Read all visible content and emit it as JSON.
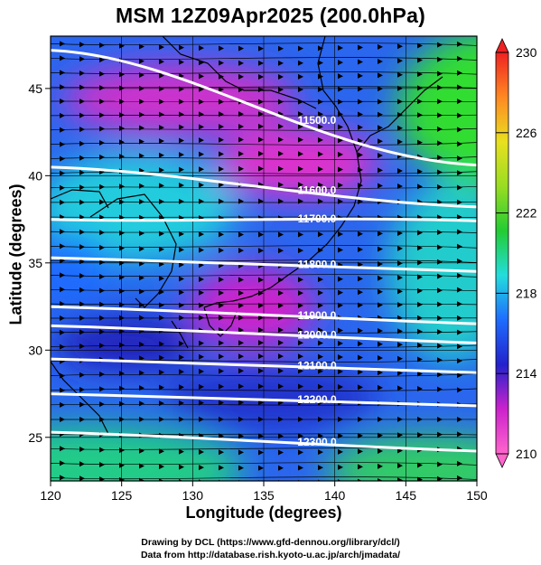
{
  "title": "MSM 12Z09Apr2025 (200.0hPa)",
  "xlabel": "Longitude (degrees)",
  "ylabel": "Latitude  (degrees)",
  "credit_lines": [
    "Drawing by DCL (https://www.gfd-dennou.org/library/dcl/)",
    "Data from http://database.rish.kyoto-u.ac.jp/arch/jmadata/"
  ],
  "map": {
    "lon_range": [
      120,
      150
    ],
    "lat_range": [
      22.5,
      48
    ],
    "x_ticks": [
      "120",
      "125",
      "130",
      "135",
      "140",
      "145",
      "150"
    ],
    "y_ticks": [
      "25",
      "30",
      "35",
      "40",
      "45"
    ],
    "gridlines": true
  },
  "colorbar": {
    "min": 210,
    "max": 230,
    "tick_labels": [
      "210",
      "214",
      "218",
      "222",
      "226",
      "230"
    ],
    "colors": [
      "#ff66cc",
      "#cc22cc",
      "#2222cc",
      "#1e6cff",
      "#22dddd",
      "#22cc33",
      "#99dd22",
      "#e8e020",
      "#ff8822",
      "#ee2222"
    ]
  },
  "contours": [
    {
      "label": "11500.0",
      "lat_w": 47.2,
      "lat_e": 40.6
    },
    {
      "label": "11600.0",
      "lat_w": 40.5,
      "lat_e": 38.2
    },
    {
      "label": "11700.0",
      "lat_w": 37.5,
      "lat_e": 37.4
    },
    {
      "label": "11800.0",
      "lat_w": 35.3,
      "lat_e": 34.5
    },
    {
      "label": "11900.0",
      "lat_w": 32.5,
      "lat_e": 31.5
    },
    {
      "label": "12000.0",
      "lat_w": 31.4,
      "lat_e": 30.4
    },
    {
      "label": "12100.0",
      "lat_w": 29.5,
      "lat_e": 28.7
    },
    {
      "label": "12200.0",
      "lat_w": 27.5,
      "lat_e": 26.8
    },
    {
      "label": "12300.0",
      "lat_w": 25.3,
      "lat_e": 24.2
    }
  ]
}
